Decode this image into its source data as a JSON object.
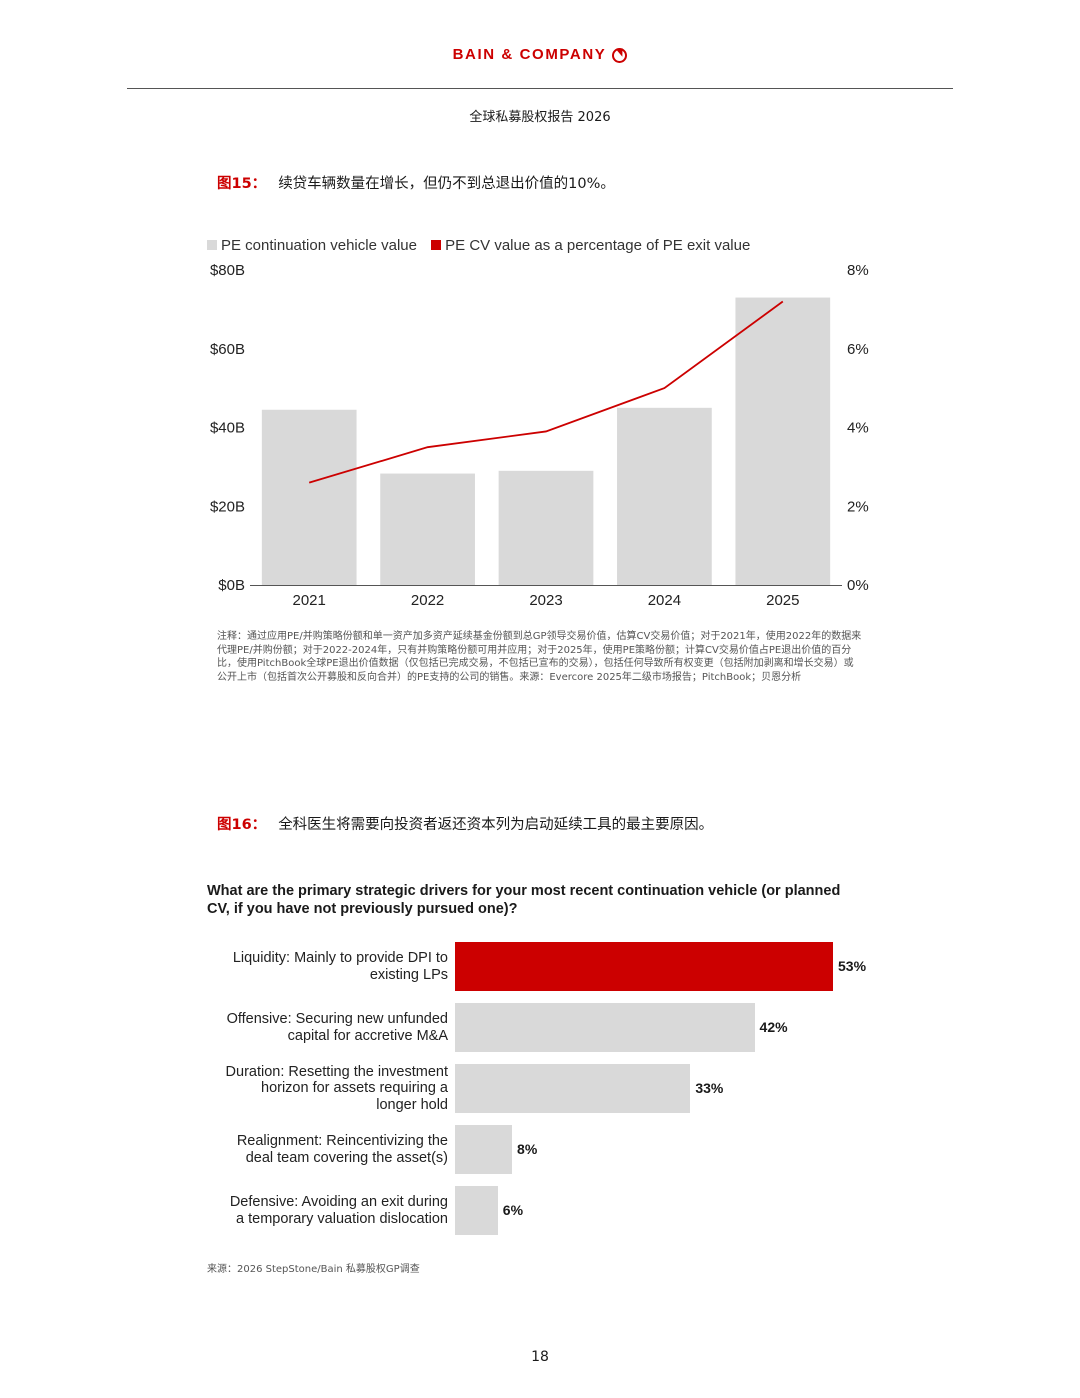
{
  "header": {
    "brand": "BAIN & COMPANY",
    "report_title": "全球私募股权报告 2026",
    "page_number": "18"
  },
  "figure15": {
    "number": "图15：",
    "title": "续贷车辆数量在增长，但仍不到总退出价值的10%。",
    "note": "注释：通过应用PE/并购策略份额和单一资产加多资产延续基金份额到总GP领导交易价值，估算CV交易价值；对于2021年，使用2022年的数据来代理PE/并购份额；对于2022-2024年，只有并购策略份额可用并应用；对于2025年，使用PE策略份额；计算CV交易价值占PE退出价值的百分比，使用PitchBook全球PE退出价值数据（仅包括已完成交易，不包括已宣布的交易），包括任何导致所有权变更（包括附加剥离和增长交易）或公开上市（包括首次公开募股和反向合并）的PE支持的公司的销售。来源：Evercore 2025年二级市场报告；PitchBook；贝恩分析"
  },
  "figure16": {
    "number": "图16：",
    "title": "全科医生将需要向投资者返还资本列为启动延续工具的最主要原因。",
    "question": "What are the primary strategic drivers for your most recent continuation vehicle (or planned CV, if you have not previously pursued one)?",
    "source": "来源：2026 StepStone/Bain 私募股权GP调查"
  },
  "chart_data": [
    {
      "type": "bar",
      "categories": [
        "2021",
        "2022",
        "2023",
        "2024",
        "2025"
      ],
      "series": [
        {
          "name": "PE continuation vehicle value",
          "values": [
            44.5,
            28.3,
            29,
            45,
            73
          ],
          "color": "#d9d9d9",
          "axis": "left"
        },
        {
          "name": "PE CV value as a percentage of PE exit value",
          "type": "line",
          "values": [
            2.6,
            3.5,
            3.9,
            5.0,
            7.2
          ],
          "color": "#cc0000",
          "axis": "right"
        }
      ],
      "y_left": {
        "ticks": [
          "$80B",
          "$60B",
          "$40B",
          "$20B",
          "$0B"
        ],
        "ylim": [
          0,
          80
        ]
      },
      "y_right": {
        "ticks": [
          "8%",
          "6%",
          "4%",
          "2%",
          "0%"
        ],
        "ylim": [
          0,
          8
        ]
      },
      "legend": "top-left",
      "grid": false
    },
    {
      "type": "bar",
      "orientation": "horizontal",
      "categories": [
        "Liquidity: Mainly to provide DPI to existing LPs",
        "Offensive: Securing new unfunded capital for accretive M&A",
        "Duration: Resetting the investment horizon for assets requiring a longer hold",
        "Realignment: Reincentivizing the deal team covering the asset(s)",
        "Defensive: Avoiding an exit during a temporary valuation dislocation"
      ],
      "label_lines": [
        [
          "Liquidity: Mainly to provide DPI to",
          "existing LPs"
        ],
        [
          "Offensive: Securing new unfunded",
          "capital for accretive M&A"
        ],
        [
          "Duration: Resetting the investment",
          "horizon for assets requiring a",
          "longer hold"
        ],
        [
          "Realignment: Reincentivizing the",
          "deal team covering the asset(s)"
        ],
        [
          "Defensive: Avoiding an exit during",
          "a temporary valuation dislocation"
        ]
      ],
      "values": [
        53,
        42,
        33,
        8,
        6
      ],
      "value_labels": [
        "53%",
        "42%",
        "33%",
        "8%",
        "6%"
      ],
      "colors": [
        "#cc0000",
        "#d9d9d9",
        "#d9d9d9",
        "#d9d9d9",
        "#d9d9d9"
      ]
    }
  ]
}
